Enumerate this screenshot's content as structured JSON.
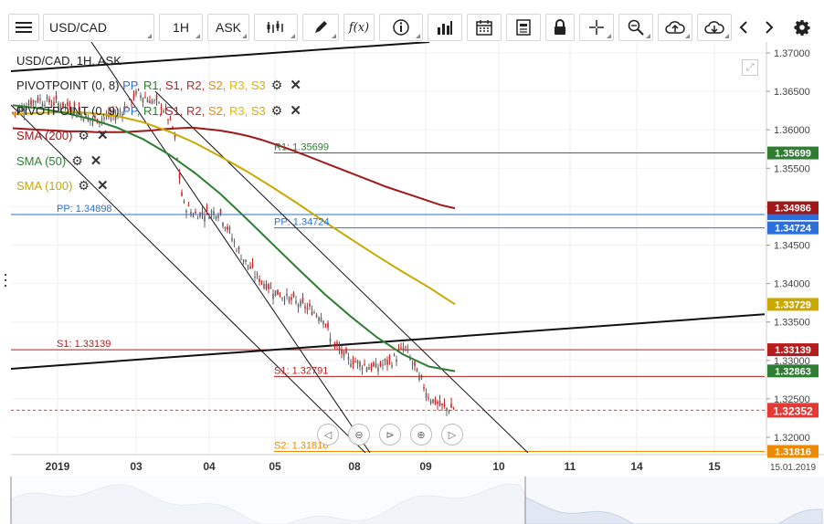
{
  "toolbar": {
    "symbol": "USD/CAD",
    "timeframe": "1H",
    "price_type": "ASK"
  },
  "legend": {
    "title": "USD/CAD, 1H, ASK",
    "pivot1": {
      "name": "PIVOTPOINT (0, 8)",
      "pp": "PP,",
      "r1": "R1,",
      "s1": "S1,",
      "r2": "R2,",
      "s2": "S2,",
      "r3": "R3,",
      "s3": "S3"
    },
    "pivot2": {
      "name": "PIVOTPOINT (0, 9)",
      "pp": "PP,",
      "r1": "R1,",
      "s1": "S1,",
      "r2": "R2,",
      "s2": "S2,",
      "r3": "R3,",
      "s3": "S3"
    },
    "sma200": "SMA (200)",
    "sma50": "SMA (50)",
    "sma100": "SMA (100)"
  },
  "colors": {
    "pp": "#2a6fdb",
    "r1": "#2e7d32",
    "s1": "#b71c1c",
    "r2": "#c62828",
    "s2": "#ef8a00",
    "r3": "#e6b800",
    "s3": "#d4b000",
    "sma200": "#a01818",
    "sma50": "#2e7d32",
    "sma100": "#c9a800",
    "candle_up": "#666666",
    "candle_down": "#c62828",
    "current": "#e53935"
  },
  "chart_data": {
    "type": "candlestick",
    "ylim": [
      1.3188,
      1.372
    ],
    "y_ticks": [
      "1.37000",
      "1.36500",
      "1.36000",
      "1.35500",
      "1.35000",
      "1.34500",
      "1.34000",
      "1.33500",
      "1.33000",
      "1.32500",
      "1.32000"
    ],
    "x_ticks": [
      "2019",
      "03",
      "04",
      "05",
      "08",
      "09",
      "10",
      "11",
      "14",
      "15"
    ],
    "date_label": "15.01.2019",
    "current_price": "1.32352",
    "price_labels": [
      {
        "text": "1.35699",
        "value": 1.35699,
        "color": "#2e7d32"
      },
      {
        "text": "1.34986",
        "value": 1.34986,
        "color": "#a01818"
      },
      {
        "text": "1.34724",
        "value": 1.34724,
        "color": "#2a6fdb"
      },
      {
        "text": "1.33729",
        "value": 1.33729,
        "color": "#c9a800"
      },
      {
        "text": "1.33139",
        "value": 1.33139,
        "color": "#b71c1c"
      },
      {
        "text": "1.32863",
        "value": 1.32863,
        "color": "#2e7d32"
      },
      {
        "text": "1.31816",
        "value": 1.31816,
        "color": "#ef8a00"
      }
    ],
    "pivot_lines": [
      {
        "label": "PP: 1.34898",
        "value": 1.34898,
        "color": "#2a6fdb"
      },
      {
        "label": "S1: 1.33139",
        "value": 1.33139,
        "color": "#b71c1c"
      },
      {
        "label": "R1: 1.35699",
        "value": 1.35699,
        "color": "#2e7d32"
      },
      {
        "label": "PP: 1.34724",
        "value": 1.34724,
        "color": "#2a6fdb"
      },
      {
        "label": "S1: 1.32791",
        "value": 1.32791,
        "color": "#b71c1c"
      },
      {
        "label": "S2: 1.31816",
        "value": 1.31816,
        "color": "#ef8a00"
      }
    ],
    "sma200": [
      1.3602,
      1.3601,
      1.36,
      1.3599,
      1.3598,
      1.3598,
      1.3597,
      1.3597,
      1.3597,
      1.3598,
      1.3599,
      1.3601,
      1.3602,
      1.3603,
      1.3601,
      1.3599,
      1.3596,
      1.3592,
      1.3587,
      1.3581,
      1.3575,
      1.3568,
      1.3561,
      1.3554,
      1.3547,
      1.354,
      1.3533,
      1.3526,
      1.352,
      1.3514,
      1.3508,
      1.3502,
      1.3498
    ],
    "sma50": [
      1.3632,
      1.3628,
      1.3622,
      1.3614,
      1.3603,
      1.3588,
      1.3568,
      1.3544,
      1.3516,
      1.3484,
      1.3451,
      1.3418,
      1.3386,
      1.3357,
      1.333,
      1.3308,
      1.3292,
      1.3286
    ],
    "sma100": [
      1.362,
      1.3622,
      1.3623,
      1.3622,
      1.3618,
      1.361,
      1.3598,
      1.3583,
      1.3565,
      1.3546,
      1.3525,
      1.3503,
      1.348,
      1.3458,
      1.3436,
      1.3415,
      1.3395,
      1.3373
    ]
  }
}
